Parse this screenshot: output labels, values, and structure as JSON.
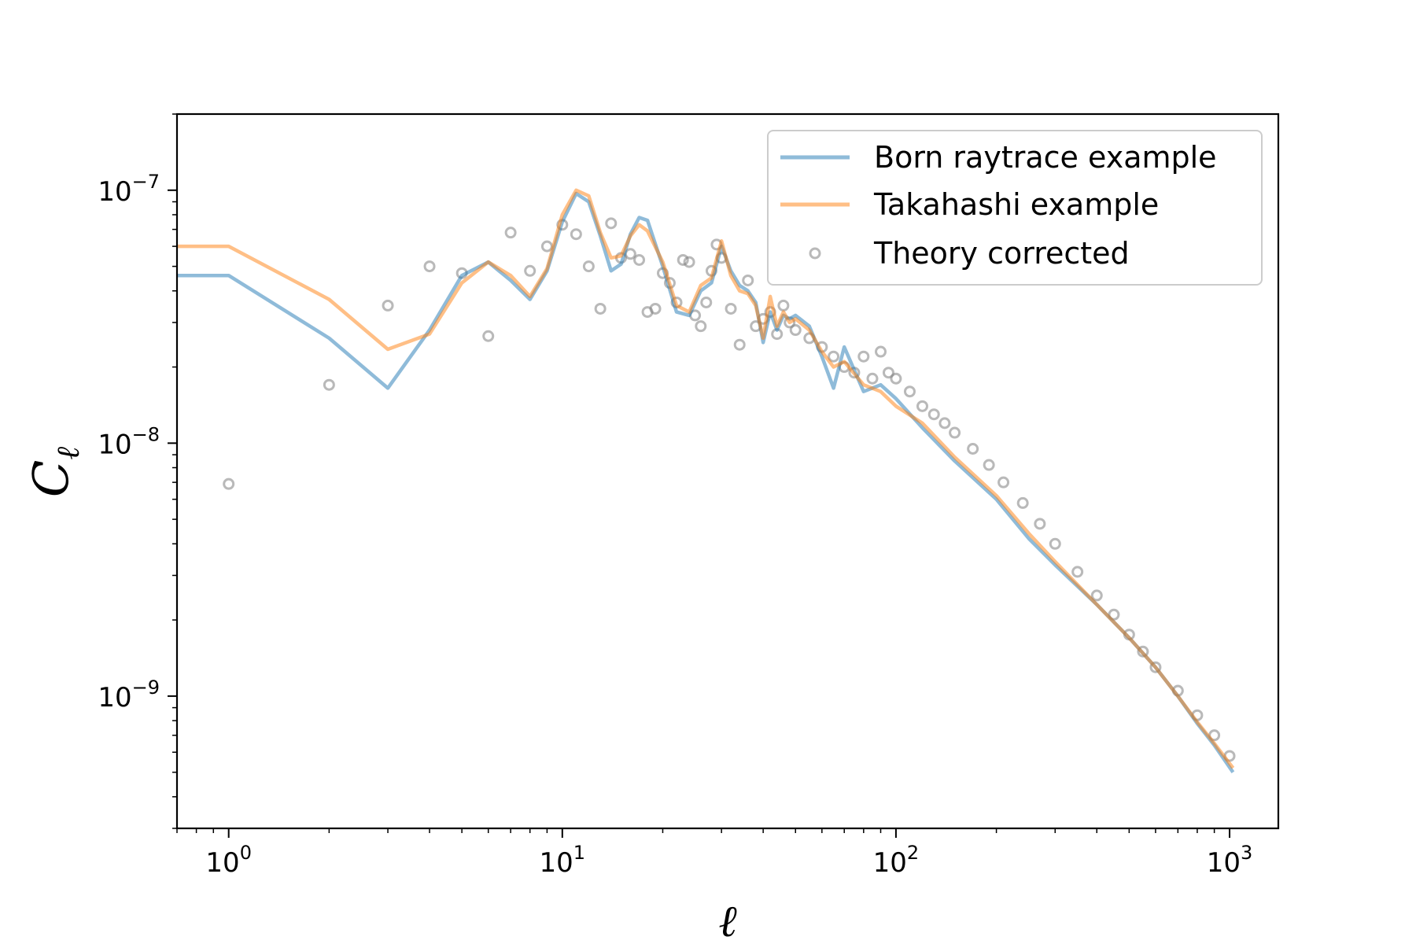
{
  "chart_data": {
    "type": "line",
    "title": "",
    "xlabel": "ℓ",
    "ylabel": {
      "main": "C",
      "sub": "ℓ"
    },
    "xscale": "log",
    "yscale": "log",
    "xlim": [
      0.7,
      1400
    ],
    "ylim": [
      3e-10,
      2e-07
    ],
    "x_ticks": [
      {
        "value": 1,
        "base": "10",
        "exp": "0"
      },
      {
        "value": 10,
        "base": "10",
        "exp": "1"
      },
      {
        "value": 100,
        "base": "10",
        "exp": "2"
      },
      {
        "value": 1000,
        "base": "10",
        "exp": "3"
      }
    ],
    "y_ticks": [
      {
        "value": 1e-09,
        "base": "10",
        "exp": "−9"
      },
      {
        "value": 1e-08,
        "base": "10",
        "exp": "−8"
      },
      {
        "value": 1e-07,
        "base": "10",
        "exp": "−7"
      }
    ],
    "grid": false,
    "legend": {
      "position": "top-right"
    },
    "series": [
      {
        "name": "Born raytrace example",
        "kind": "line",
        "color": "#1f77b4",
        "opacity": 0.5,
        "x": [
          0.7,
          1,
          2,
          3,
          4,
          5,
          6,
          7,
          8,
          9,
          10,
          11,
          12,
          13,
          14,
          15,
          16,
          17,
          18,
          20,
          22,
          24,
          26,
          28,
          30,
          32,
          34,
          36,
          38,
          40,
          42,
          44,
          46,
          48,
          50,
          55,
          60,
          65,
          70,
          80,
          90,
          100,
          120,
          150,
          200,
          250,
          300,
          400,
          500,
          600,
          700,
          800,
          900,
          1024
        ],
        "y": [
          4.6e-08,
          4.6e-08,
          2.6e-08,
          1.65e-08,
          2.8e-08,
          4.6e-08,
          5.2e-08,
          4.4e-08,
          3.7e-08,
          4.8e-08,
          7.5e-08,
          9.7e-08,
          9e-08,
          6.6e-08,
          4.8e-08,
          5.1e-08,
          6.7e-08,
          7.8e-08,
          7.6e-08,
          5e-08,
          3.3e-08,
          3.2e-08,
          4e-08,
          4.3e-08,
          6e-08,
          4.8e-08,
          4.2e-08,
          4e-08,
          3.6e-08,
          2.5e-08,
          3.3e-08,
          2.8e-08,
          3.2e-08,
          3.1e-08,
          3.2e-08,
          2.9e-08,
          2.2e-08,
          1.65e-08,
          2.4e-08,
          1.6e-08,
          1.7e-08,
          1.5e-08,
          1.15e-08,
          8.5e-09,
          6e-09,
          4.2e-09,
          3.3e-09,
          2.3e-09,
          1.7e-09,
          1.3e-09,
          1e-09,
          7.8e-10,
          6.4e-10,
          5e-10
        ]
      },
      {
        "name": "Takahashi example",
        "kind": "line",
        "color": "#ff7f0e",
        "opacity": 0.5,
        "x": [
          0.7,
          1,
          2,
          3,
          4,
          5,
          6,
          7,
          8,
          9,
          10,
          11,
          12,
          13,
          14,
          15,
          16,
          17,
          18,
          20,
          22,
          24,
          26,
          28,
          30,
          32,
          34,
          36,
          38,
          40,
          42,
          44,
          46,
          48,
          50,
          55,
          60,
          65,
          70,
          80,
          90,
          100,
          120,
          150,
          200,
          250,
          300,
          400,
          500,
          600,
          700,
          800,
          900,
          1024
        ],
        "y": [
          6e-08,
          6e-08,
          3.7e-08,
          2.35e-08,
          2.7e-08,
          4.3e-08,
          5.2e-08,
          4.6e-08,
          3.8e-08,
          4.9e-08,
          8e-08,
          1e-07,
          9.5e-08,
          6.8e-08,
          5.4e-08,
          5.5e-08,
          6.6e-08,
          7.3e-08,
          6.9e-08,
          5.2e-08,
          3.5e-08,
          3.3e-08,
          4.2e-08,
          4.5e-08,
          6.3e-08,
          4.6e-08,
          4e-08,
          3.9e-08,
          3.5e-08,
          2.6e-08,
          3.8e-08,
          2.9e-08,
          3.3e-08,
          3e-08,
          3.1e-08,
          2.8e-08,
          2.3e-08,
          2e-08,
          2.1e-08,
          1.7e-08,
          1.6e-08,
          1.4e-08,
          1.2e-08,
          8.8e-09,
          6.2e-09,
          4.4e-09,
          3.4e-09,
          2.3e-09,
          1.7e-09,
          1.3e-09,
          1e-09,
          7.9e-10,
          6.5e-10,
          5.2e-10
        ]
      },
      {
        "name": "Theory corrected",
        "kind": "scatter",
        "color": "#808080",
        "opacity": 0.25,
        "x": [
          1,
          2,
          3,
          4,
          5,
          6,
          7,
          8,
          9,
          10,
          11,
          12,
          13,
          14,
          15,
          16,
          17,
          18,
          19,
          20,
          21,
          22,
          23,
          24,
          25,
          26,
          27,
          28,
          29,
          30,
          32,
          34,
          36,
          38,
          40,
          42,
          44,
          46,
          48,
          50,
          55,
          60,
          65,
          70,
          75,
          80,
          85,
          90,
          95,
          100,
          110,
          120,
          130,
          140,
          150,
          170,
          190,
          210,
          240,
          270,
          300,
          350,
          400,
          450,
          500,
          550,
          600,
          700,
          800,
          900,
          1000
        ],
        "y": [
          6.9e-09,
          1.7e-08,
          3.5e-08,
          5e-08,
          4.7e-08,
          2.65e-08,
          6.8e-08,
          4.8e-08,
          6e-08,
          7.3e-08,
          6.7e-08,
          5e-08,
          3.4e-08,
          7.4e-08,
          5.4e-08,
          5.6e-08,
          5.3e-08,
          3.3e-08,
          3.4e-08,
          4.7e-08,
          4.3e-08,
          3.6e-08,
          5.3e-08,
          5.2e-08,
          3.2e-08,
          2.9e-08,
          3.6e-08,
          4.8e-08,
          6.1e-08,
          5.4e-08,
          3.4e-08,
          2.45e-08,
          4.4e-08,
          2.9e-08,
          3.1e-08,
          3.3e-08,
          2.7e-08,
          3.5e-08,
          3e-08,
          2.8e-08,
          2.6e-08,
          2.4e-08,
          2.2e-08,
          2e-08,
          1.9e-08,
          2.2e-08,
          1.8e-08,
          2.3e-08,
          1.9e-08,
          1.8e-08,
          1.6e-08,
          1.4e-08,
          1.3e-08,
          1.2e-08,
          1.1e-08,
          9.5e-09,
          8.2e-09,
          7e-09,
          5.8e-09,
          4.8e-09,
          4e-09,
          3.1e-09,
          2.5e-09,
          2.1e-09,
          1.75e-09,
          1.5e-09,
          1.3e-09,
          1.05e-09,
          8.4e-10,
          7e-10,
          5.8e-10
        ]
      }
    ]
  }
}
